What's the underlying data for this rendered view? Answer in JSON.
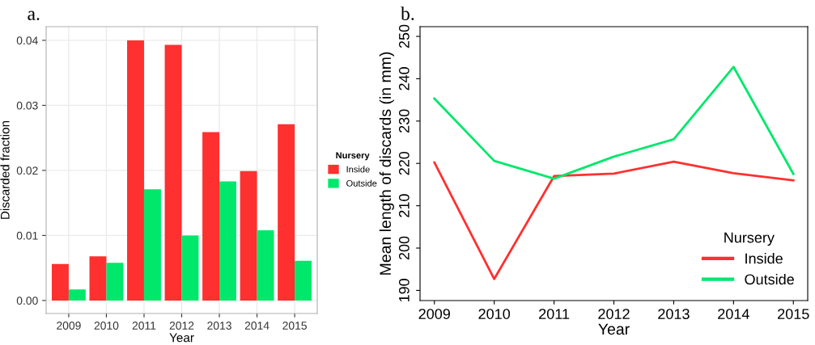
{
  "chart_data": [
    {
      "type": "bar",
      "title": "a.",
      "xlabel": "Year",
      "ylabel": "Discarded fraction",
      "legend_title": "Nursery",
      "categories": [
        "2009",
        "2010",
        "2011",
        "2012",
        "2013",
        "2014",
        "2015"
      ],
      "series": [
        {
          "name": "Inside",
          "color": "#ff3030",
          "values": [
            0.0056,
            0.0068,
            0.04,
            0.0393,
            0.0259,
            0.0199,
            0.0271
          ]
        },
        {
          "name": "Outside",
          "color": "#00e86c",
          "values": [
            0.0017,
            0.0058,
            0.0171,
            0.01,
            0.0183,
            0.0108,
            0.0061
          ]
        }
      ],
      "ylim": [
        -0.002,
        0.0421
      ],
      "yticks": [
        "0.00",
        0.01,
        0.02,
        0.03,
        0.04
      ],
      "grid": true,
      "legend": "right"
    },
    {
      "type": "line",
      "title": "b.",
      "xlabel": "Year",
      "ylabel": "Mean length of discards (in mm)",
      "legend_title": "Nursery",
      "x": [
        2009,
        2010,
        2011,
        2012,
        2013,
        2014,
        2015
      ],
      "series": [
        {
          "name": "Inside",
          "color": "#ff3030",
          "values": [
            220.2,
            192.7,
            217.0,
            217.6,
            220.4,
            217.7,
            216.0
          ]
        },
        {
          "name": "Outside",
          "color": "#00e86c",
          "values": [
            235.3,
            220.6,
            216.4,
            221.6,
            225.7,
            242.8,
            217.5
          ]
        }
      ],
      "xlim": [
        2008.76,
        2015.24
      ],
      "xticks": [
        2009,
        2010,
        2011,
        2012,
        2013,
        2014,
        2015
      ],
      "ylim": [
        187.6,
        252.3
      ],
      "yticks": [
        190,
        200,
        210,
        220,
        230,
        240,
        250
      ],
      "grid": false,
      "legend": "bottom right"
    }
  ]
}
